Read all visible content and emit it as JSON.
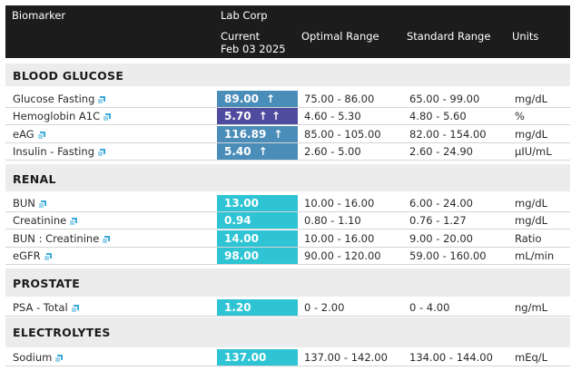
{
  "header": {
    "biomarker": "Biomarker",
    "lab": "Lab Corp",
    "current": "Current",
    "date": "Feb 03 2025",
    "optimal": "Optimal Range",
    "standard": "Standard Range",
    "units": "Units"
  },
  "colors": {
    "header_bg": "#1c1c1c",
    "high_blue": "#4a8db8",
    "high_purple": "#4f4b9e",
    "normal_cyan": "#2ec4d4",
    "copy_icon": "#3aa9d8"
  },
  "sections": [
    {
      "title": "BLOOD GLUCOSE",
      "rows": [
        {
          "name": "Glucose Fasting",
          "value": "89.00",
          "arrows": "↑",
          "optimal": "75.00 - 86.00",
          "standard": "65.00 - 99.00",
          "unit": "mg/dL",
          "color": "#4a8db8"
        },
        {
          "name": "Hemoglobin A1C",
          "value": "5.70",
          "arrows": "↑ ↑",
          "optimal": "4.60 - 5.30",
          "standard": "4.80 - 5.60",
          "unit": "%",
          "color": "#4f4b9e"
        },
        {
          "name": "eAG",
          "value": "116.89",
          "arrows": "↑",
          "optimal": "85.00 - 105.00",
          "standard": "82.00 - 154.00",
          "unit": "mg/dL",
          "color": "#4a8db8"
        },
        {
          "name": "Insulin - Fasting",
          "value": "5.40",
          "arrows": "↑",
          "optimal": "2.60 - 5.00",
          "standard": "2.60 - 24.90",
          "unit": "µIU/mL",
          "color": "#4a8db8"
        }
      ]
    },
    {
      "title": "RENAL",
      "rows": [
        {
          "name": "BUN",
          "value": "13.00",
          "arrows": "",
          "optimal": "10.00 - 16.00",
          "standard": "6.00 - 24.00",
          "unit": "mg/dL",
          "color": "#2ec4d4"
        },
        {
          "name": "Creatinine",
          "value": "0.94",
          "arrows": "",
          "optimal": "0.80 - 1.10",
          "standard": "0.76 - 1.27",
          "unit": "mg/dL",
          "color": "#2ec4d4"
        },
        {
          "name": "BUN : Creatinine",
          "value": "14.00",
          "arrows": "",
          "optimal": "10.00 - 16.00",
          "standard": "9.00 - 20.00",
          "unit": "Ratio",
          "color": "#2ec4d4"
        },
        {
          "name": "eGFR",
          "value": "98.00",
          "arrows": "",
          "optimal": "90.00 - 120.00",
          "standard": "59.00 - 160.00",
          "unit": "mL/min",
          "color": "#2ec4d4"
        }
      ]
    },
    {
      "title": "PROSTATE",
      "rows": [
        {
          "name": "PSA - Total",
          "value": "1.20",
          "arrows": "",
          "optimal": "0 - 2.00",
          "standard": "0 - 4.00",
          "unit": "ng/mL",
          "color": "#2ec4d4"
        }
      ]
    },
    {
      "title": "ELECTROLYTES",
      "rows": [
        {
          "name": "Sodium",
          "value": "137.00",
          "arrows": "",
          "optimal": "137.00 - 142.00",
          "standard": "134.00 - 144.00",
          "unit": "mEq/L",
          "color": "#2ec4d4"
        }
      ]
    }
  ]
}
